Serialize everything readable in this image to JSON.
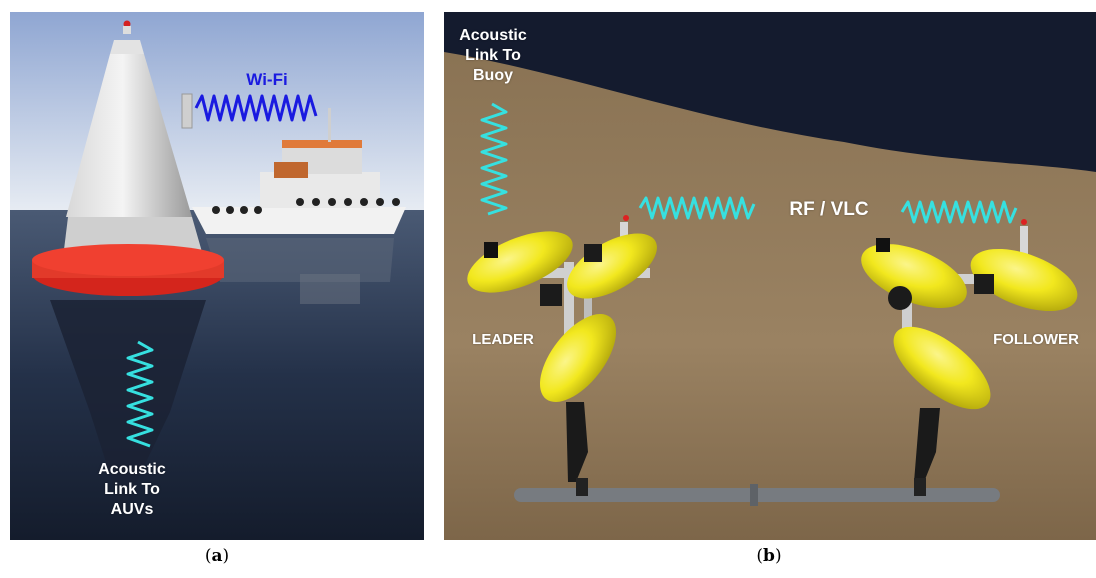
{
  "panels": {
    "a": {
      "caption_open": "(",
      "caption_letter": "a",
      "caption_close": ")",
      "wifi_label": "Wi-Fi",
      "acoustic_lines": [
        "Acoustic",
        "Link To",
        "AUVs"
      ],
      "colors": {
        "sky_top": "#9fb3d8",
        "water": "#1f2a3f",
        "buoy_band": "#e23a2a",
        "wave_cyan": "#36e0e0",
        "wave_blue": "#1a1ae0"
      }
    },
    "b": {
      "caption_open": "(",
      "caption_letter": "b",
      "caption_close": ")",
      "acoustic_lines": [
        "Acoustic",
        "Link To",
        "Buoy"
      ],
      "rf_label": "RF / VLC",
      "leader_label": "LEADER",
      "follower_label": "FOLLOWER",
      "colors": {
        "night_sky": "#141b2e",
        "seabed": "#8c7456",
        "auv_yellow": "#f2e81e",
        "wave_cyan": "#36e0e0"
      }
    }
  }
}
